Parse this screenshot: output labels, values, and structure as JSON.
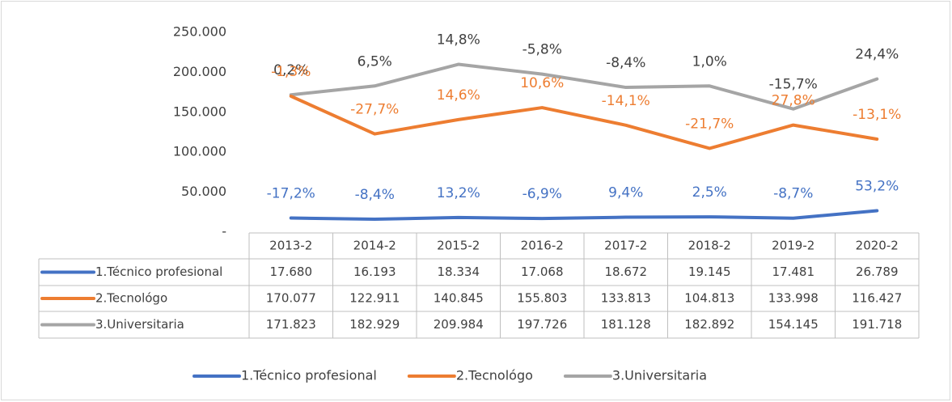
{
  "chart_data": {
    "type": "line",
    "categories": [
      "2013-2",
      "2014-2",
      "2015-2",
      "2016-2",
      "2017-2",
      "2018-2",
      "2019-2",
      "2020-2"
    ],
    "series": [
      {
        "name": "1.Técnico profesional",
        "color": "#4472c4",
        "values": [
          17680,
          16193,
          18334,
          17068,
          18672,
          19145,
          17481,
          26789
        ],
        "value_labels": [
          "17.680",
          "16.193",
          "18.334",
          "17.068",
          "18.672",
          "19.145",
          "17.481",
          "26.789"
        ],
        "change_labels": [
          "-17,2%",
          "-8,4%",
          "13,2%",
          "-6,9%",
          "9,4%",
          "2,5%",
          "-8,7%",
          "53,2%"
        ]
      },
      {
        "name": "2.Tecnológo",
        "color": "#ed7d31",
        "values": [
          170077,
          122911,
          140845,
          155803,
          133813,
          104813,
          133998,
          116427
        ],
        "value_labels": [
          "170.077",
          "122.911",
          "140.845",
          "155.803",
          "133.813",
          "104.813",
          "133.998",
          "116.427"
        ],
        "change_labels": [
          "-1,3%",
          "-27,7%",
          "14,6%",
          "10,6%",
          "-14,1%",
          "-21,7%",
          "27,8%",
          "-13,1%"
        ]
      },
      {
        "name": "3.Universitaria",
        "color": "#a5a5a5",
        "values": [
          171823,
          182929,
          209984,
          197726,
          181128,
          182892,
          154145,
          191718
        ],
        "value_labels": [
          "171.823",
          "182.929",
          "209.984",
          "197.726",
          "181.128",
          "182.892",
          "154.145",
          "191.718"
        ],
        "change_labels": [
          "0,2%",
          "6,5%",
          "14,8%",
          "-5,8%",
          "-8,4%",
          "1,0%",
          "-15,7%",
          "24,4%"
        ]
      }
    ],
    "ylim": [
      0,
      250000
    ],
    "yticks": [
      {
        "value": 0,
        "label": "-"
      },
      {
        "value": 50000,
        "label": "50.000"
      },
      {
        "value": 100000,
        "label": "100.000"
      },
      {
        "value": 150000,
        "label": "150.000"
      },
      {
        "value": 200000,
        "label": "200.000"
      },
      {
        "value": 250000,
        "label": "250.000"
      }
    ],
    "legend": "bottom"
  }
}
